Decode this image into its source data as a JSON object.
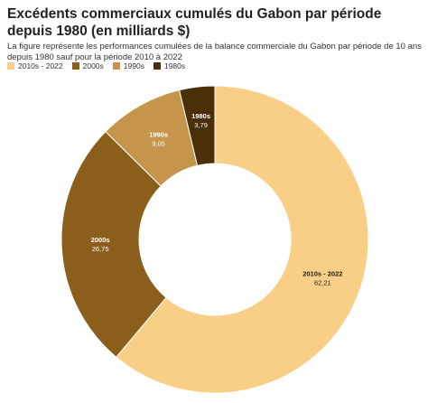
{
  "chart_data": {
    "type": "donut",
    "title": "Excédents commerciaux cumulés du Gabon par période depuis 1980 (en milliards $)",
    "subtitle": "La figure représente les performances cumulées de la balance commerciale du Gabon par période de 10 ans depuis 1980 sauf pour la période 2010 à 2022",
    "categories": [
      "2010s - 2022",
      "2000s",
      "1990s",
      "1980s"
    ],
    "values": [
      62.21,
      26.75,
      9.05,
      3.79
    ],
    "value_labels": [
      "62,21",
      "26,75",
      "9,05",
      "3,79"
    ],
    "colors": [
      "#f9cf87",
      "#8c5e1c",
      "#c4954b",
      "#4b2f08"
    ],
    "label_colors": [
      "#222222",
      "#ffffff",
      "#ffffff",
      "#ffffff"
    ]
  }
}
